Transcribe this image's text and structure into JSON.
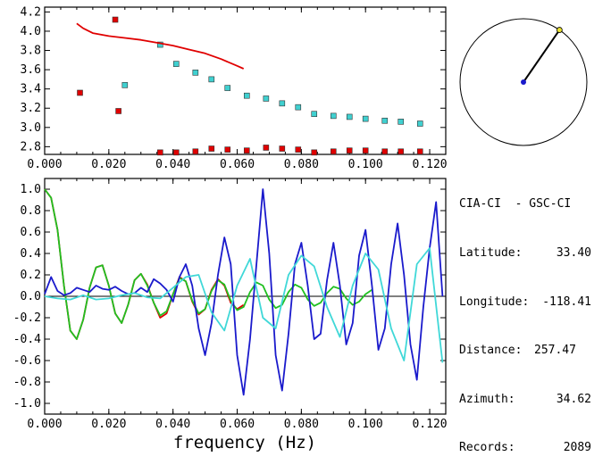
{
  "info": {
    "title": "CIA-CI  - GSC-CI",
    "latitude_label": "Latitude:",
    "latitude_value": "33.40",
    "longitude_label": "Longitude:",
    "longitude_value": "-118.41",
    "distance_label": "Distance:",
    "distance_value": "257.47",
    "azimuth_label": "Azimuth:",
    "azimuth_value": "34.62",
    "records_label": "Records:",
    "records_value": "2089"
  },
  "chart_data": [
    {
      "type": "scatter",
      "xlim": [
        0.0,
        0.125
      ],
      "ylim": [
        2.72,
        4.25
      ],
      "x_ticks": [
        "0.000",
        "0.020",
        "0.040",
        "0.060",
        "0.080",
        "0.100",
        "0.120"
      ],
      "y_ticks": [
        "2.8",
        "3.0",
        "3.2",
        "3.4",
        "3.6",
        "3.8",
        "4.0",
        "4.2"
      ],
      "series": [
        {
          "color": "#e00000",
          "marker": "square",
          "x": [
            0.011,
            0.022,
            0.023,
            0.036,
            0.041,
            0.047,
            0.052,
            0.057,
            0.063,
            0.069,
            0.074,
            0.079,
            0.084,
            0.09,
            0.095,
            0.1,
            0.106,
            0.111,
            0.117
          ],
          "y": [
            3.36,
            4.12,
            3.17,
            2.72,
            2.72,
            2.75,
            2.78,
            2.77,
            2.76,
            2.79,
            2.78,
            2.77,
            2.74,
            2.75,
            2.76,
            2.76,
            2.75,
            2.75,
            2.75
          ]
        },
        {
          "color": "#40d0d0",
          "marker": "square",
          "x": [
            0.025,
            0.036,
            0.041,
            0.047,
            0.052,
            0.057,
            0.063,
            0.069,
            0.074,
            0.079,
            0.084,
            0.09,
            0.095,
            0.1,
            0.106,
            0.111,
            0.117
          ],
          "y": [
            3.44,
            3.86,
            3.66,
            3.57,
            3.5,
            3.41,
            3.33,
            3.3,
            3.25,
            3.21,
            3.14,
            3.12,
            3.11,
            3.09,
            3.07,
            3.06,
            3.04
          ]
        },
        {
          "color": "#e00000",
          "type": "line",
          "x": [
            0.01,
            0.012,
            0.015,
            0.02,
            0.025,
            0.03,
            0.035,
            0.04,
            0.045,
            0.05,
            0.055,
            0.06,
            0.062
          ],
          "y": [
            4.08,
            4.03,
            3.98,
            3.95,
            3.93,
            3.91,
            3.88,
            3.85,
            3.81,
            3.77,
            3.71,
            3.64,
            3.61
          ]
        }
      ]
    },
    {
      "type": "line",
      "xlabel": "frequency (Hz)",
      "xlim": [
        0.0,
        0.125
      ],
      "ylim": [
        -1.1,
        1.1
      ],
      "x_ticks": [
        "0.000",
        "0.020",
        "0.040",
        "0.060",
        "0.080",
        "0.100",
        "0.120"
      ],
      "y_ticks": [
        "1.0",
        "0.8",
        "0.6",
        "0.4",
        "0.2",
        "0.0",
        "-0.2",
        "-0.4",
        "-0.6",
        "-0.8",
        "-1.0"
      ],
      "zero_line": true,
      "series": [
        {
          "color": "#e00000",
          "x": [
            0.0,
            0.002,
            0.004,
            0.006,
            0.008,
            0.01,
            0.012,
            0.014,
            0.016,
            0.018,
            0.02,
            0.022,
            0.024,
            0.026,
            0.028,
            0.03,
            0.032,
            0.034,
            0.036,
            0.038,
            0.04,
            0.042,
            0.044,
            0.046,
            0.048,
            0.05,
            0.052,
            0.054,
            0.056,
            0.058,
            0.06,
            0.062
          ],
          "y": [
            1.0,
            0.92,
            0.62,
            0.1,
            -0.32,
            -0.4,
            -0.22,
            0.08,
            0.27,
            0.29,
            0.1,
            -0.16,
            -0.25,
            -0.08,
            0.15,
            0.21,
            0.11,
            -0.06,
            -0.2,
            -0.16,
            0.02,
            0.18,
            0.14,
            -0.05,
            -0.17,
            -0.12,
            0.06,
            0.16,
            0.1,
            -0.06,
            -0.12,
            -0.08
          ]
        },
        {
          "color": "#20c020",
          "x": [
            0.0,
            0.002,
            0.004,
            0.006,
            0.008,
            0.01,
            0.012,
            0.014,
            0.016,
            0.018,
            0.02,
            0.022,
            0.024,
            0.026,
            0.028,
            0.03,
            0.032,
            0.034,
            0.036,
            0.038,
            0.04,
            0.042,
            0.044,
            0.046,
            0.048,
            0.05,
            0.052,
            0.054,
            0.056,
            0.058,
            0.06,
            0.062,
            0.064,
            0.066,
            0.068,
            0.07,
            0.072,
            0.074,
            0.076,
            0.078,
            0.08,
            0.082,
            0.084,
            0.086,
            0.088,
            0.09,
            0.092,
            0.094,
            0.096,
            0.098,
            0.1,
            0.102
          ],
          "y": [
            1.0,
            0.92,
            0.62,
            0.1,
            -0.32,
            -0.4,
            -0.22,
            0.08,
            0.27,
            0.29,
            0.1,
            -0.16,
            -0.25,
            -0.08,
            0.15,
            0.21,
            0.1,
            -0.06,
            -0.18,
            -0.14,
            0.02,
            0.17,
            0.14,
            -0.04,
            -0.16,
            -0.12,
            0.05,
            0.15,
            0.11,
            -0.04,
            -0.13,
            -0.1,
            0.04,
            0.13,
            0.1,
            -0.03,
            -0.11,
            -0.08,
            0.04,
            0.11,
            0.08,
            -0.03,
            -0.09,
            -0.06,
            0.03,
            0.09,
            0.07,
            -0.02,
            -0.08,
            -0.05,
            0.02,
            0.06
          ]
        },
        {
          "color": "#1a1acc",
          "x": [
            0.0,
            0.002,
            0.004,
            0.006,
            0.008,
            0.01,
            0.012,
            0.014,
            0.016,
            0.018,
            0.02,
            0.022,
            0.024,
            0.026,
            0.028,
            0.03,
            0.032,
            0.034,
            0.036,
            0.038,
            0.04,
            0.042,
            0.044,
            0.046,
            0.048,
            0.05,
            0.052,
            0.054,
            0.056,
            0.058,
            0.06,
            0.062,
            0.064,
            0.066,
            0.068,
            0.07,
            0.072,
            0.074,
            0.076,
            0.078,
            0.08,
            0.082,
            0.084,
            0.086,
            0.088,
            0.09,
            0.092,
            0.094,
            0.096,
            0.098,
            0.1,
            0.102,
            0.104,
            0.106,
            0.108,
            0.11,
            0.112,
            0.114,
            0.116,
            0.118,
            0.12,
            0.122,
            0.124
          ],
          "y": [
            0.02,
            0.18,
            0.05,
            0.01,
            0.03,
            0.08,
            0.06,
            0.04,
            0.1,
            0.07,
            0.06,
            0.09,
            0.05,
            0.02,
            0.03,
            0.08,
            0.04,
            0.16,
            0.12,
            0.06,
            -0.05,
            0.18,
            0.3,
            0.1,
            -0.3,
            -0.55,
            -0.25,
            0.2,
            0.55,
            0.3,
            -0.55,
            -0.92,
            -0.4,
            0.3,
            1.0,
            0.4,
            -0.55,
            -0.88,
            -0.35,
            0.3,
            0.5,
            0.1,
            -0.4,
            -0.35,
            0.15,
            0.5,
            0.1,
            -0.45,
            -0.25,
            0.38,
            0.62,
            0.1,
            -0.5,
            -0.3,
            0.3,
            0.68,
            0.2,
            -0.45,
            -0.78,
            -0.1,
            0.45,
            0.88,
            0.0
          ]
        },
        {
          "color": "#40d8d8",
          "x": [
            0.0,
            0.004,
            0.008,
            0.012,
            0.016,
            0.02,
            0.024,
            0.028,
            0.032,
            0.036,
            0.04,
            0.044,
            0.048,
            0.052,
            0.056,
            0.06,
            0.064,
            0.068,
            0.072,
            0.076,
            0.08,
            0.084,
            0.088,
            0.092,
            0.096,
            0.1,
            0.104,
            0.108,
            0.112,
            0.116,
            0.12,
            0.124
          ],
          "y": [
            0.0,
            -0.02,
            -0.03,
            0.01,
            -0.03,
            -0.02,
            0.01,
            0.03,
            -0.01,
            -0.02,
            0.08,
            0.18,
            0.2,
            -0.15,
            -0.32,
            0.1,
            0.35,
            -0.2,
            -0.3,
            0.2,
            0.38,
            0.28,
            -0.1,
            -0.38,
            0.1,
            0.4,
            0.25,
            -0.3,
            -0.6,
            0.3,
            0.45,
            -0.62
          ]
        }
      ]
    }
  ],
  "compass": {
    "azimuth_degrees": 34.62,
    "line_color": "#000000",
    "center_dot_color": "#1a1acc",
    "end_dot_color": "#e8e030"
  }
}
